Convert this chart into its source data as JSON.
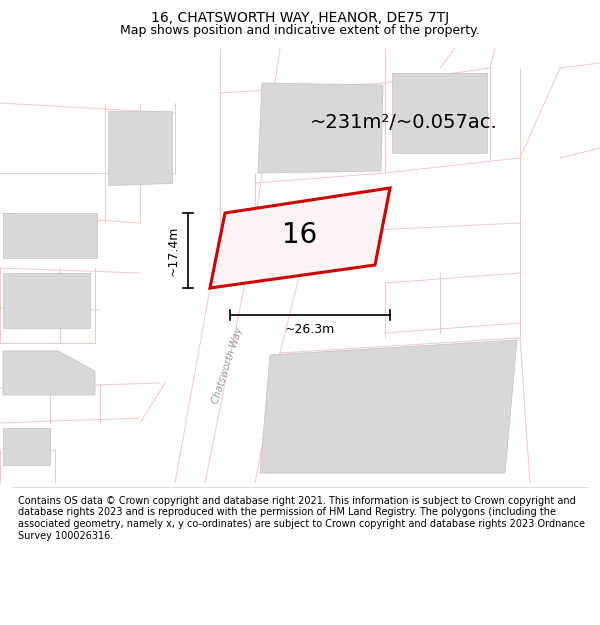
{
  "title": "16, CHATSWORTH WAY, HEANOR, DE75 7TJ",
  "subtitle": "Map shows position and indicative extent of the property.",
  "footer": "Contains OS data © Crown copyright and database right 2021. This information is subject to Crown copyright and database rights 2023 and is reproduced with the permission of HM Land Registry. The polygons (including the associated geometry, namely x, y co-ordinates) are subject to Crown copyright and database rights 2023 Ordnance Survey 100026316.",
  "area_label": "~231m²/~0.057ac.",
  "width_label": "~26.3m",
  "height_label": "~17.4m",
  "street_label": "Chatsworth Way",
  "number_label": "16",
  "background_color": "#ffffff",
  "road_color": "#f0c8c8",
  "red_outline": "#cc0000",
  "building_fill": "#d8d8d8",
  "building_edge": "#c0c0c0",
  "title_fontsize": 10,
  "subtitle_fontsize": 9,
  "footer_fontsize": 7.0,
  "area_fontsize": 14,
  "number_fontsize": 20,
  "dim_fontsize": 9,
  "street_fontsize": 7
}
